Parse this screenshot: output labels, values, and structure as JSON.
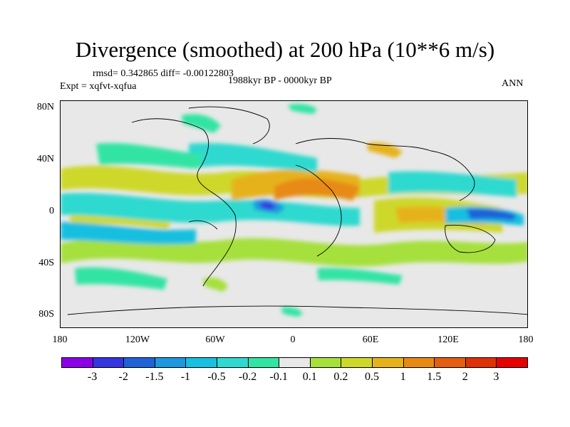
{
  "title": "Divergence (smoothed) at 200 hPa (10**6 m/s)",
  "stats": "rmsd= 0.342865  diff= -0.00122803",
  "expt": "Expt = xqfvt-xqfua",
  "period": "1988kyr BP - 0000kyr BP",
  "season": "ANN",
  "lat_labels": [
    "80N",
    "40N",
    "0",
    "40S",
    "80S"
  ],
  "lon_labels": [
    "180",
    "120W",
    "60W",
    "0",
    "60E",
    "120E",
    "180"
  ],
  "colorbar": {
    "labels": [
      "-3",
      "-2",
      "-1.5",
      "-1",
      "-0.5",
      "-0.2",
      "-0.1",
      "0.1",
      "0.2",
      "0.5",
      "1",
      "1.5",
      "2",
      "3"
    ],
    "colors": [
      "#8a00e6",
      "#3535e0",
      "#1f62d8",
      "#1d98df",
      "#17bfe0",
      "#2fd9cf",
      "#32e4a4",
      "#e8e8e8",
      "#a6e03c",
      "#cdd82a",
      "#e6b21c",
      "#e78a14",
      "#e35e10",
      "#e03008",
      "#e60000"
    ]
  }
}
